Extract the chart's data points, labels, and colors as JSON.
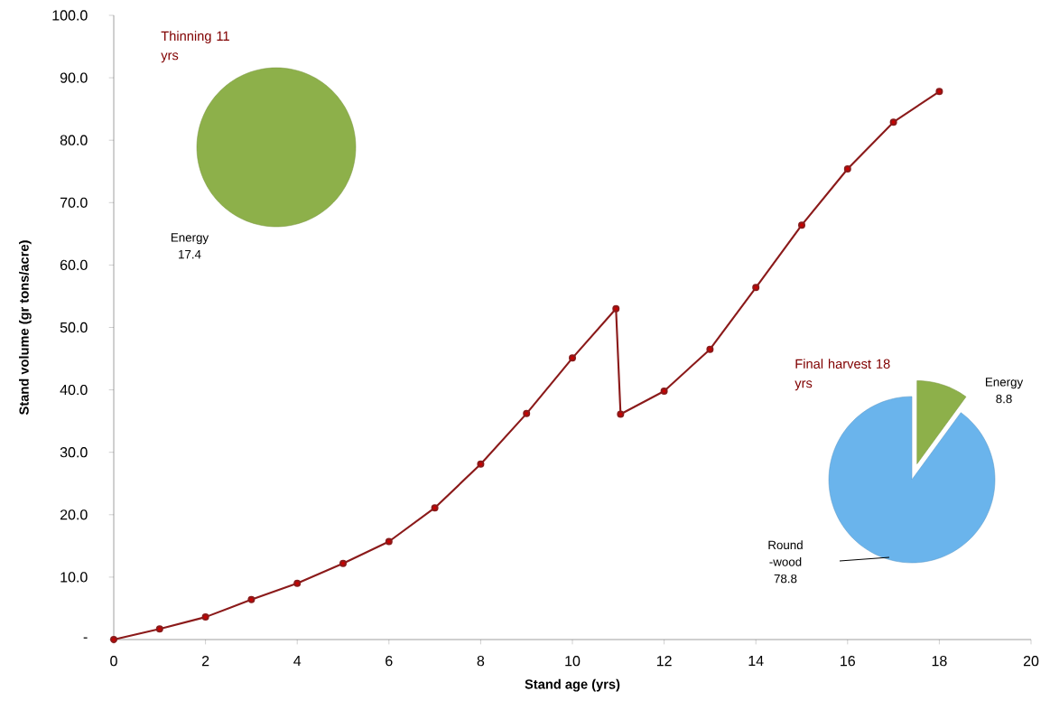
{
  "chart_data": [
    {
      "type": "line",
      "xlabel": "Stand age (yrs)",
      "ylabel": "Stand volume (gr tons/acre)",
      "x": [
        0,
        1,
        2,
        3,
        4,
        5,
        6,
        7,
        8,
        9,
        10,
        10.95,
        11.05,
        12,
        13,
        14,
        15,
        16,
        17,
        18
      ],
      "values": [
        0,
        1.7,
        3.6,
        6.4,
        9.0,
        12.2,
        15.7,
        21.1,
        28.1,
        36.2,
        45.1,
        53.0,
        36.1,
        39.8,
        46.5,
        56.4,
        66.4,
        75.4,
        82.9,
        87.8
      ],
      "color": "#8b1a1a",
      "marker": "circle",
      "xlim": [
        0,
        20
      ],
      "xticks": [
        0,
        2,
        4,
        6,
        8,
        10,
        12,
        14,
        16,
        18,
        20
      ],
      "ylim": [
        0,
        100
      ],
      "yticks": [
        {
          "value": 0,
          "label": "-"
        },
        {
          "value": 10,
          "label": "10.0"
        },
        {
          "value": 20,
          "label": "20.0"
        },
        {
          "value": 30,
          "label": "30.0"
        },
        {
          "value": 40,
          "label": "40.0"
        },
        {
          "value": 50,
          "label": "50.0"
        },
        {
          "value": 60,
          "label": "60.0"
        },
        {
          "value": 70,
          "label": "70.0"
        },
        {
          "value": 80,
          "label": "80.0"
        },
        {
          "value": 90,
          "label": "90.0"
        },
        {
          "value": 100,
          "label": "100.0"
        }
      ]
    },
    {
      "type": "pie",
      "title": "Thinning 11 yrs",
      "categories": [
        "Energy"
      ],
      "values": [
        17.4
      ],
      "colors": [
        "#8db04a"
      ],
      "data_labels": true
    },
    {
      "type": "pie",
      "title": "Final harvest 18 yrs",
      "categories": [
        "Energy",
        "Round -wood"
      ],
      "values": [
        8.8,
        78.8
      ],
      "colors": [
        "#8db04a",
        "#6ab4ec"
      ],
      "data_labels": true
    }
  ]
}
